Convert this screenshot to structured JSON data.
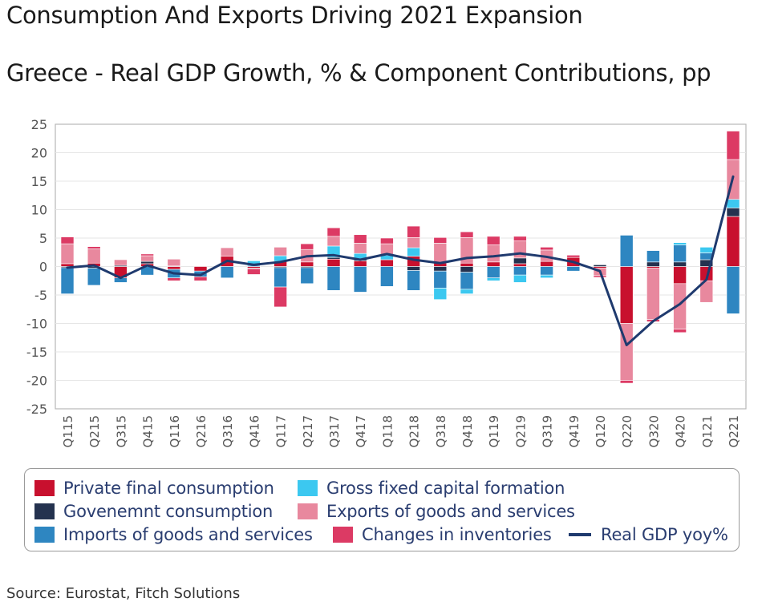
{
  "title": "Consumption And Exports Driving 2021 Expansion",
  "subtitle": "Greece - Real GDP Growth, % & Component Contributions, pp",
  "source": "Source: Eurostat, Fitch Solutions",
  "chart_data": {
    "type": "bar",
    "stacked": true,
    "ylim": [
      -25,
      25
    ],
    "yticks": [
      25,
      20,
      15,
      10,
      5,
      0,
      -5,
      -10,
      -15,
      -20,
      -25
    ],
    "categories": [
      "Q115",
      "Q215",
      "Q315",
      "Q415",
      "Q116",
      "Q216",
      "Q316",
      "Q416",
      "Q117",
      "Q217",
      "Q317",
      "Q417",
      "Q118",
      "Q218",
      "Q318",
      "Q418",
      "Q119",
      "Q219",
      "Q319",
      "Q419",
      "Q120",
      "Q220",
      "Q320",
      "Q420",
      "Q121",
      "Q221"
    ],
    "series": [
      {
        "name": "Private final consumption",
        "color": "#c8102e",
        "values": [
          0.5,
          0.6,
          -2.0,
          0.5,
          -0.5,
          -0.8,
          1.8,
          -0.3,
          0.9,
          0.8,
          1.3,
          1.0,
          1.2,
          1.8,
          0.6,
          0.6,
          0.8,
          0.5,
          0.9,
          1.6,
          -0.3,
          -10.0,
          -0.3,
          -3.0,
          -2.5,
          8.8
        ]
      },
      {
        "name": "Govenemnt consumption",
        "color": "#24324f",
        "values": [
          -0.2,
          -0.3,
          0.2,
          0.4,
          0.1,
          0.0,
          0.0,
          -0.1,
          -0.2,
          -0.2,
          0.3,
          0.3,
          0.0,
          -0.7,
          -0.8,
          -1.0,
          0.0,
          1.0,
          0.0,
          0.0,
          0.3,
          0.0,
          0.8,
          0.8,
          1.2,
          1.5
        ]
      },
      {
        "name": "Imports of goods and services",
        "color": "#2e86c1",
        "values": [
          -4.6,
          -3.0,
          -0.8,
          -1.5,
          -1.5,
          -1.0,
          -2.0,
          0.2,
          -3.4,
          -2.8,
          -4.2,
          -4.5,
          -3.5,
          -3.5,
          -3.0,
          -3.0,
          -2.0,
          -1.5,
          -1.5,
          -0.8,
          0.0,
          5.5,
          2.0,
          3.0,
          1.2,
          -8.3
        ]
      },
      {
        "name": "Gross fixed capital formation",
        "color": "#3cc8f0",
        "values": [
          0.0,
          0.0,
          0.0,
          0.0,
          0.0,
          0.0,
          0.0,
          0.8,
          1.0,
          0.0,
          2.0,
          1.0,
          0.8,
          1.5,
          -2.0,
          -0.8,
          -0.5,
          -1.3,
          -0.5,
          0.0,
          0.0,
          0.0,
          0.0,
          0.4,
          1.0,
          1.5
        ]
      },
      {
        "name": "Exports of goods and services",
        "color": "#e8889e",
        "values": [
          3.5,
          2.5,
          1.0,
          1.0,
          1.2,
          0.0,
          1.5,
          0.0,
          1.5,
          2.2,
          1.7,
          1.8,
          2.0,
          1.8,
          3.5,
          4.5,
          3.0,
          3.0,
          2.0,
          0.0,
          -1.3,
          -10.0,
          -9.0,
          -8.0,
          -3.8,
          7.0
        ]
      },
      {
        "name": "Changes in inventories",
        "color": "#dc3a64",
        "values": [
          1.2,
          0.4,
          0.0,
          0.3,
          -0.5,
          -0.7,
          0.0,
          -1.0,
          -3.5,
          1.0,
          1.5,
          1.5,
          1.0,
          2.0,
          1.0,
          1.0,
          1.5,
          0.8,
          0.5,
          0.4,
          -0.3,
          -0.5,
          -0.4,
          -0.6,
          0.0,
          5.0
        ]
      }
    ],
    "line": {
      "name": "Real GDP yoy%",
      "color": "#1f3a6e",
      "values": [
        -0.2,
        0.2,
        -2.0,
        0.2,
        -1.2,
        -1.5,
        1.0,
        0.3,
        0.8,
        1.8,
        2.0,
        1.2,
        2.2,
        1.2,
        0.6,
        1.5,
        1.8,
        2.3,
        1.7,
        0.8,
        -0.8,
        -13.8,
        -9.6,
        -6.6,
        -2.3,
        15.8
      ]
    }
  },
  "legend": {
    "private": "Private final consumption",
    "gfcf": "Gross fixed capital formation",
    "gov": "Govenemnt consumption",
    "exports": "Exports of goods and services",
    "imports": "Imports of goods and services",
    "inventories": "Changes in inventories",
    "gdp": "Real GDP yoy%"
  },
  "colors": {
    "private": "#c8102e",
    "gov": "#24324f",
    "imports": "#2e86c1",
    "gfcf": "#3cc8f0",
    "exports": "#e8889e",
    "inventories": "#dc3a64",
    "gdp": "#1f3a6e"
  }
}
